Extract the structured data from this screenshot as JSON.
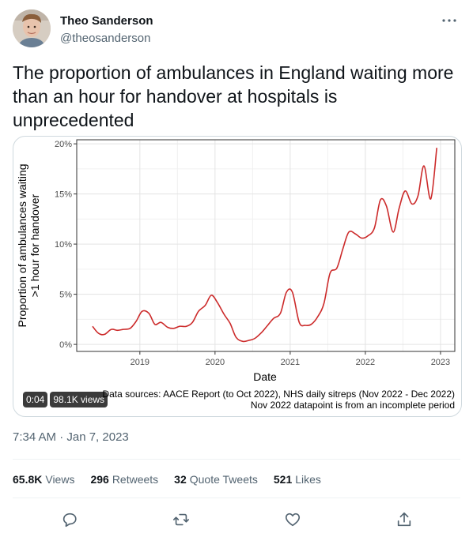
{
  "author": {
    "name": "Theo Sanderson",
    "handle": "@theosanderson"
  },
  "tweet_text": "The proportion of ambulances in England waiting more than an hour for handover at hospitals is unprecedented",
  "video": {
    "duration": "0:04",
    "views": "98.1K views"
  },
  "timestamp": "7:34 AM · Jan 7, 2023",
  "stats": [
    {
      "value": "65.8K",
      "label": "Views"
    },
    {
      "value": "296",
      "label": "Retweets"
    },
    {
      "value": "32",
      "label": "Quote Tweets"
    },
    {
      "value": "521",
      "label": "Likes"
    }
  ],
  "icons": {
    "more": "more-icon",
    "reply": "reply-icon",
    "retweet": "retweet-icon",
    "like": "like-icon",
    "share": "share-icon"
  },
  "colors": {
    "line": "#cc2a2a",
    "text_secondary": "#536471"
  },
  "chart_data": {
    "type": "line",
    "ylabel_lines": [
      "Proportion of ambulances waiting",
      ">1 hour for handover"
    ],
    "xlabel": "Date",
    "y_ticks": [
      0,
      5,
      10,
      15,
      20
    ],
    "y_tick_labels": [
      "0%",
      "5%",
      "10%",
      "15%",
      "20%"
    ],
    "x_ticks": [
      2019,
      2020,
      2021,
      2022,
      2023
    ],
    "x_tick_labels": [
      "2019",
      "2020",
      "2021",
      "2022",
      "2023"
    ],
    "xlim": [
      2018.16,
      2023.19
    ],
    "ylim": [
      -0.7,
      20.4
    ],
    "grid": true,
    "caption_lines": [
      "Data sources: AACE Report (to Oct 2022), NHS daily sitreps (Nov 2022 - Dec 2022)",
      "Nov 2022 datapoint is from an incomplete period"
    ],
    "series": [
      {
        "x": [
          2018.37,
          2018.45,
          2018.53,
          2018.62,
          2018.7,
          2018.78,
          2018.87,
          2018.95,
          2019.03,
          2019.12,
          2019.2,
          2019.28,
          2019.37,
          2019.45,
          2019.53,
          2019.62,
          2019.7,
          2019.78,
          2019.87,
          2019.95,
          2020.03,
          2020.12,
          2020.2,
          2020.28,
          2020.37,
          2020.45,
          2020.53,
          2020.62,
          2020.7,
          2020.78,
          2020.87,
          2020.95,
          2021.03,
          2021.12,
          2021.2,
          2021.28,
          2021.37,
          2021.45,
          2021.53,
          2021.62,
          2021.7,
          2021.78,
          2021.87,
          2021.95,
          2022.03,
          2022.12,
          2022.2,
          2022.28,
          2022.37,
          2022.45,
          2022.53,
          2022.62,
          2022.7,
          2022.78,
          2022.87,
          2022.95
        ],
        "y": [
          1.8,
          1.1,
          1.0,
          1.5,
          1.4,
          1.5,
          1.6,
          2.3,
          3.3,
          3.1,
          2.0,
          2.2,
          1.7,
          1.6,
          1.8,
          1.8,
          2.2,
          3.3,
          3.9,
          4.9,
          4.2,
          3.0,
          2.1,
          0.7,
          0.3,
          0.4,
          0.6,
          1.2,
          1.9,
          2.6,
          3.1,
          5.2,
          5.2,
          2.2,
          1.9,
          2.0,
          2.8,
          4.1,
          7.1,
          7.6,
          9.5,
          11.2,
          11.0,
          10.6,
          10.8,
          11.6,
          14.4,
          13.8,
          11.2,
          13.6,
          15.3,
          14.0,
          14.8,
          17.8,
          14.5,
          19.6
        ]
      }
    ]
  }
}
